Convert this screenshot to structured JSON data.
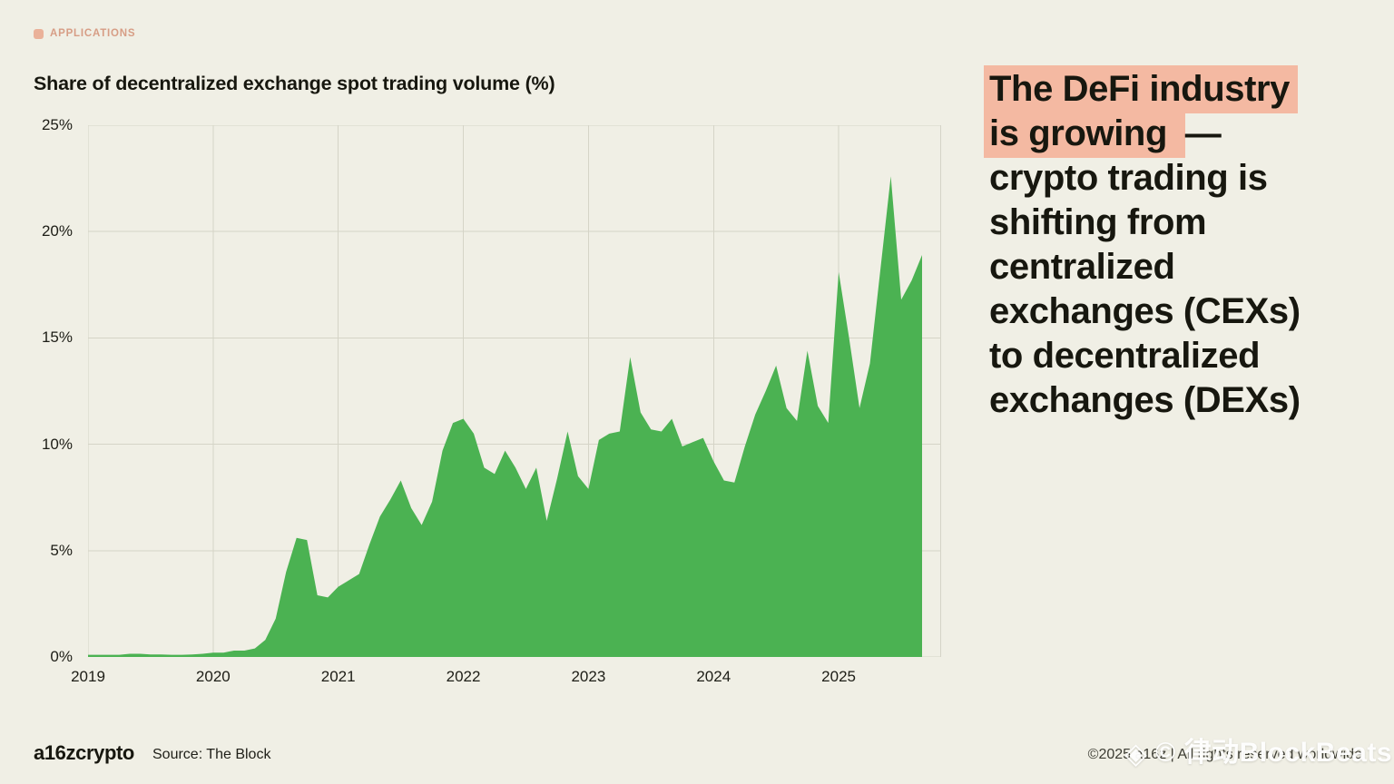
{
  "page": {
    "background_color": "#f0efe5",
    "text_color": "#17170f"
  },
  "eyebrow": {
    "label": "APPLICATIONS",
    "color": "#d79d85",
    "square_color": "#eab199"
  },
  "chart": {
    "title": "Share of decentralized exchange spot trading volume (%)"
  },
  "chart_data": {
    "type": "area",
    "title": "Share of decentralized exchange spot trading volume (%)",
    "xlabel": "",
    "ylabel": "",
    "x_tick_labels": [
      "2019",
      "2020",
      "2021",
      "2022",
      "2023",
      "2024",
      "2025"
    ],
    "y_tick_labels": [
      "0%",
      "5%",
      "10%",
      "15%",
      "20%",
      "25%"
    ],
    "ylim": [
      0,
      25
    ],
    "grid": true,
    "legend": false,
    "fill_color": "#4bb252",
    "months": [
      "2019-01",
      "2019-02",
      "2019-03",
      "2019-04",
      "2019-05",
      "2019-06",
      "2019-07",
      "2019-08",
      "2019-09",
      "2019-10",
      "2019-11",
      "2019-12",
      "2020-01",
      "2020-02",
      "2020-03",
      "2020-04",
      "2020-05",
      "2020-06",
      "2020-07",
      "2020-08",
      "2020-09",
      "2020-10",
      "2020-11",
      "2020-12",
      "2021-01",
      "2021-02",
      "2021-03",
      "2021-04",
      "2021-05",
      "2021-06",
      "2021-07",
      "2021-08",
      "2021-09",
      "2021-10",
      "2021-11",
      "2021-12",
      "2022-01",
      "2022-02",
      "2022-03",
      "2022-04",
      "2022-05",
      "2022-06",
      "2022-07",
      "2022-08",
      "2022-09",
      "2022-10",
      "2022-11",
      "2022-12",
      "2023-01",
      "2023-02",
      "2023-03",
      "2023-04",
      "2023-05",
      "2023-06",
      "2023-07",
      "2023-08",
      "2023-09",
      "2023-10",
      "2023-11",
      "2023-12",
      "2024-01",
      "2024-02",
      "2024-03",
      "2024-04",
      "2024-05",
      "2024-06",
      "2024-07",
      "2024-08",
      "2024-09",
      "2024-10",
      "2024-11",
      "2024-12",
      "2025-01",
      "2025-02",
      "2025-03",
      "2025-04",
      "2025-05",
      "2025-06",
      "2025-07",
      "2025-08",
      "2025-09"
    ],
    "values": [
      0.1,
      0.1,
      0.1,
      0.1,
      0.15,
      0.15,
      0.12,
      0.12,
      0.1,
      0.1,
      0.12,
      0.15,
      0.2,
      0.2,
      0.3,
      0.3,
      0.4,
      0.8,
      1.8,
      4.0,
      5.6,
      5.5,
      2.9,
      2.8,
      3.3,
      3.6,
      3.9,
      5.3,
      6.6,
      7.4,
      8.3,
      7.0,
      6.2,
      7.3,
      9.7,
      11.0,
      11.2,
      10.5,
      8.9,
      8.6,
      9.7,
      8.9,
      7.9,
      8.9,
      6.4,
      8.4,
      10.6,
      8.5,
      7.9,
      10.2,
      10.5,
      10.6,
      14.1,
      11.5,
      10.7,
      10.6,
      11.2,
      9.9,
      10.1,
      10.3,
      9.2,
      8.3,
      8.2,
      9.9,
      11.4,
      12.5,
      13.7,
      11.7,
      11.1,
      14.4,
      11.8,
      11.0,
      18.1,
      15.0,
      11.7,
      13.8,
      18.2,
      22.6,
      16.8,
      17.7,
      18.9
    ]
  },
  "headline": {
    "highlight_color": "#f4b9a2",
    "lines": [
      {
        "segments": [
          {
            "text": "The DeFi industry",
            "highlight": true
          }
        ]
      },
      {
        "segments": [
          {
            "text": "is growing ",
            "highlight": true
          },
          {
            "text": "—",
            "highlight": false
          }
        ]
      },
      {
        "segments": [
          {
            "text": "crypto trading is",
            "highlight": false
          }
        ]
      },
      {
        "segments": [
          {
            "text": "shifting from",
            "highlight": false
          }
        ]
      },
      {
        "segments": [
          {
            "text": "centralized",
            "highlight": false
          }
        ]
      },
      {
        "segments": [
          {
            "text": "exchanges (CEXs)",
            "highlight": false
          }
        ]
      },
      {
        "segments": [
          {
            "text": "to decentralized",
            "highlight": false
          }
        ]
      },
      {
        "segments": [
          {
            "text": "exchanges (DEXs)",
            "highlight": false
          }
        ]
      }
    ]
  },
  "footer": {
    "logo": "a16zcrypto",
    "source": "Source: The Block",
    "copyright": "©2025 a16z | All rights reserved worldwide"
  },
  "watermark": {
    "icon": "◈",
    "text": "© 律动BlockBeats"
  }
}
